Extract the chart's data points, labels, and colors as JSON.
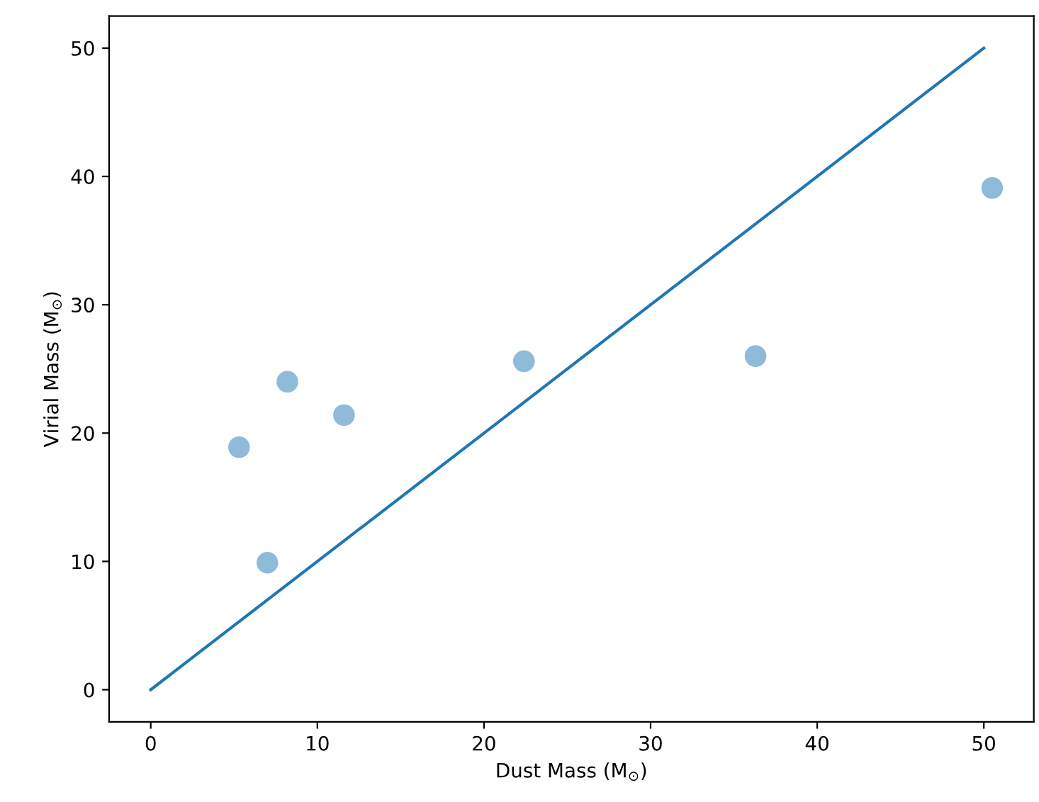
{
  "chart_data": {
    "type": "scatter",
    "xlabel": "Dust Mass (M$_{⊙}$)",
    "ylabel": "Virial Mass (M$_{⊙}$)",
    "xlim": [
      -2.5,
      53
    ],
    "ylim": [
      -2.5,
      52.5
    ],
    "xticks": [
      0,
      10,
      20,
      30,
      40,
      50
    ],
    "yticks": [
      0,
      10,
      20,
      30,
      40,
      50
    ],
    "grid": false,
    "marker": "circle",
    "series": [
      {
        "color": "#8fbbd9",
        "x": [
          5.3,
          7.0,
          8.2,
          11.6,
          22.4,
          36.3,
          50.5
        ],
        "values": [
          18.9,
          9.9,
          24.0,
          21.4,
          25.6,
          26.0,
          39.1
        ]
      },
      {
        "type": "line",
        "color": "#1f77b4",
        "x": [
          0,
          50
        ],
        "values": [
          0,
          50
        ],
        "line_style": "solid",
        "marker": "none"
      }
    ]
  }
}
